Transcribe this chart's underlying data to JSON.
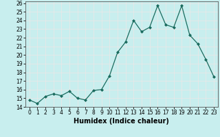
{
  "title": "",
  "xlabel": "Humidex (Indice chaleur)",
  "ylabel": "",
  "x": [
    0,
    1,
    2,
    3,
    4,
    5,
    6,
    7,
    8,
    9,
    10,
    11,
    12,
    13,
    14,
    15,
    16,
    17,
    18,
    19,
    20,
    21,
    22,
    23
  ],
  "y": [
    14.8,
    14.4,
    15.2,
    15.5,
    15.3,
    15.8,
    15.0,
    14.8,
    15.9,
    16.0,
    17.6,
    20.3,
    21.5,
    24.0,
    22.7,
    23.2,
    25.7,
    23.5,
    23.2,
    25.7,
    22.3,
    21.3,
    19.5,
    17.5
  ],
  "xlim": [
    -0.5,
    23.5
  ],
  "ylim": [
    14,
    26.2
  ],
  "yticks": [
    14,
    15,
    16,
    17,
    18,
    19,
    20,
    21,
    22,
    23,
    24,
    25,
    26
  ],
  "xticks": [
    0,
    1,
    2,
    3,
    4,
    5,
    6,
    7,
    8,
    9,
    10,
    11,
    12,
    13,
    14,
    15,
    16,
    17,
    18,
    19,
    20,
    21,
    22,
    23
  ],
  "line_color": "#1a6b5e",
  "marker_color": "#1a6b5e",
  "bg_color": "#c8eeee",
  "grid_color": "#e8e8e8",
  "tick_fontsize": 5.5,
  "label_fontsize": 7
}
